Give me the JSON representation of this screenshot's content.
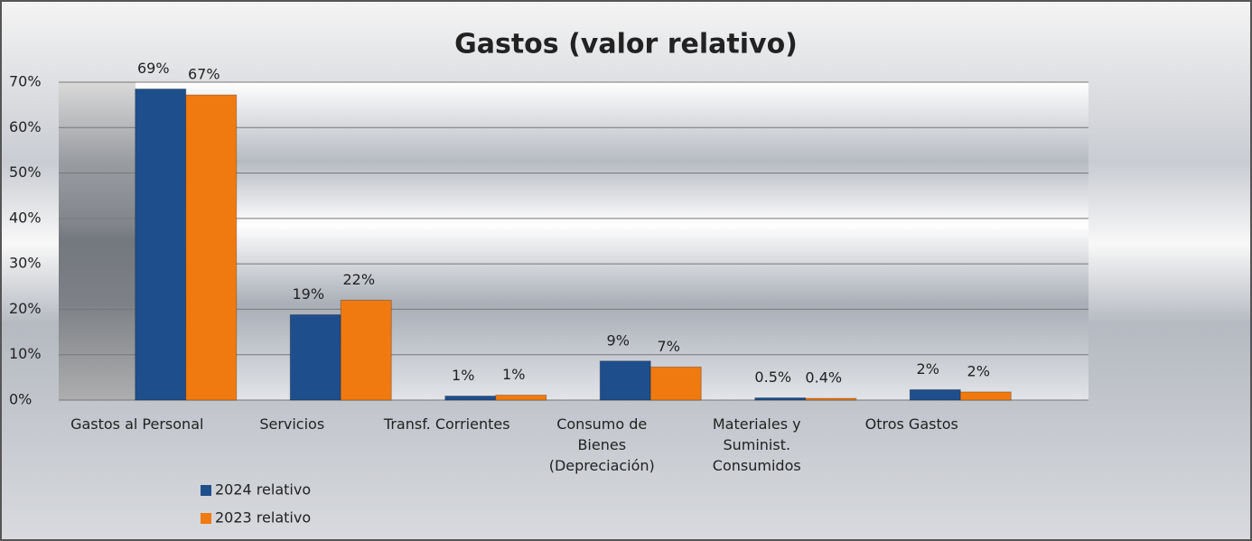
{
  "chart_data": {
    "type": "bar",
    "title": "Gastos (valor relativo)",
    "categories": [
      "Gastos al Personal",
      "Servicios",
      "Transf. Corrientes",
      "Consumo de Bienes (Depreciación)",
      "Materiales y Suminist. Consumidos",
      "Otros Gastos"
    ],
    "series": [
      {
        "name": "2024 relativo",
        "color": "#1f4e8c",
        "values": [
          68.5,
          18.8,
          0.9,
          8.6,
          0.5,
          2.3
        ],
        "value_labels": [
          "69%",
          "19%",
          "1%",
          "9%",
          "0.5%",
          "2%"
        ]
      },
      {
        "name": "2023 relativo",
        "color": "#f07a10",
        "values": [
          67.2,
          22,
          1.1,
          7.3,
          0.4,
          1.8
        ],
        "value_labels": [
          "67%",
          "22%",
          "1%",
          "7%",
          "0.4%",
          "2%"
        ]
      }
    ],
    "ylim": [
      0,
      70
    ],
    "yticks": [
      {
        "value": 0,
        "label": "0%"
      },
      {
        "value": 10,
        "label": "10%"
      },
      {
        "value": 20,
        "label": "20%"
      },
      {
        "value": 30,
        "label": "30%"
      },
      {
        "value": 40,
        "label": "40%"
      },
      {
        "value": 50,
        "label": "50%"
      },
      {
        "value": 60,
        "label": "60%"
      },
      {
        "value": 70,
        "label": "70%"
      }
    ],
    "grid": true,
    "legend": "bottom-left"
  }
}
